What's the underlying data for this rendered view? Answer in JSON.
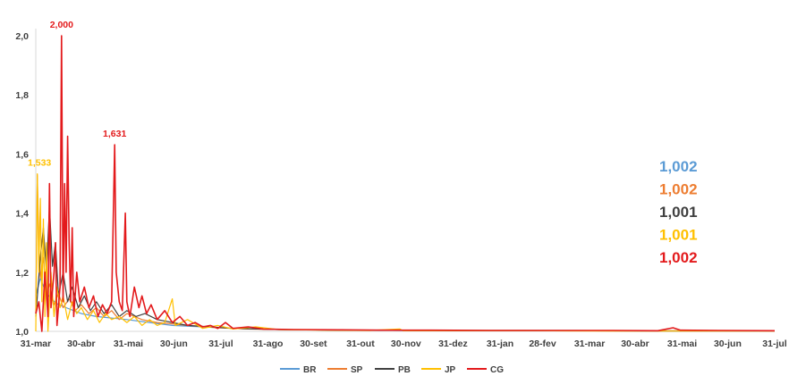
{
  "chart_data": {
    "type": "line",
    "ylim": [
      1.0,
      2.0
    ],
    "y_ticks": [
      "1,0",
      "1,2",
      "1,4",
      "1,6",
      "1,8",
      "2,0"
    ],
    "y_tick_values": [
      1.0,
      1.2,
      1.4,
      1.6,
      1.8,
      2.0
    ],
    "x_ticks": [
      "31-mar",
      "30-abr",
      "31-mai",
      "30-jun",
      "31-jul",
      "31-ago",
      "30-set",
      "31-out",
      "30-nov",
      "31-dez",
      "31-jan",
      "28-fev",
      "31-mar",
      "30-abr",
      "31-mai",
      "30-jun",
      "31-jul"
    ],
    "x_tick_days": [
      0,
      30,
      61,
      91,
      122,
      153,
      183,
      214,
      244,
      275,
      306,
      334,
      365,
      395,
      426,
      456,
      487
    ],
    "xlim": [
      0,
      487
    ],
    "grid": false,
    "legend_position": "bottom",
    "series": [
      {
        "name": "BR",
        "color": "#5B9BD5",
        "final_label": "1,002",
        "final_value": 1.002,
        "points": [
          [
            0,
            1.12
          ],
          [
            3,
            1.18
          ],
          [
            6,
            1.14
          ],
          [
            10,
            1.11
          ],
          [
            15,
            1.09
          ],
          [
            20,
            1.08
          ],
          [
            25,
            1.07
          ],
          [
            30,
            1.06
          ],
          [
            40,
            1.05
          ],
          [
            50,
            1.045
          ],
          [
            60,
            1.04
          ],
          [
            75,
            1.03
          ],
          [
            90,
            1.02
          ],
          [
            110,
            1.015
          ],
          [
            130,
            1.01
          ],
          [
            160,
            1.006
          ],
          [
            200,
            1.004
          ],
          [
            250,
            1.003
          ],
          [
            300,
            1.003
          ],
          [
            350,
            1.003
          ],
          [
            400,
            1.002
          ],
          [
            450,
            1.002
          ],
          [
            487,
            1.002
          ]
        ]
      },
      {
        "name": "SP",
        "color": "#ED7D31",
        "final_label": "1,002",
        "final_value": 1.002,
        "points": [
          [
            0,
            1.06
          ],
          [
            1,
            1.53
          ],
          [
            2,
            1.3
          ],
          [
            3,
            1.18
          ],
          [
            5,
            1.25
          ],
          [
            7,
            1.12
          ],
          [
            9,
            1.16
          ],
          [
            12,
            1.09
          ],
          [
            15,
            1.13
          ],
          [
            18,
            1.08
          ],
          [
            22,
            1.11
          ],
          [
            26,
            1.07
          ],
          [
            30,
            1.09
          ],
          [
            35,
            1.06
          ],
          [
            40,
            1.08
          ],
          [
            45,
            1.05
          ],
          [
            50,
            1.07
          ],
          [
            55,
            1.04
          ],
          [
            60,
            1.06
          ],
          [
            70,
            1.04
          ],
          [
            80,
            1.03
          ],
          [
            90,
            1.025
          ],
          [
            100,
            1.02
          ],
          [
            120,
            1.012
          ],
          [
            140,
            1.008
          ],
          [
            170,
            1.005
          ],
          [
            210,
            1.004
          ],
          [
            260,
            1.003
          ],
          [
            320,
            1.003
          ],
          [
            380,
            1.002
          ],
          [
            430,
            1.002
          ],
          [
            487,
            1.002
          ]
        ]
      },
      {
        "name": "PB",
        "color": "#404040",
        "final_label": "1,001",
        "final_value": 1.001,
        "points": [
          [
            0,
            1.05
          ],
          [
            3,
            1.25
          ],
          [
            5,
            1.35
          ],
          [
            7,
            1.2
          ],
          [
            9,
            1.42
          ],
          [
            11,
            1.22
          ],
          [
            13,
            1.3
          ],
          [
            15,
            1.12
          ],
          [
            18,
            1.2
          ],
          [
            21,
            1.1
          ],
          [
            24,
            1.15
          ],
          [
            28,
            1.08
          ],
          [
            32,
            1.12
          ],
          [
            36,
            1.07
          ],
          [
            40,
            1.1
          ],
          [
            45,
            1.06
          ],
          [
            50,
            1.09
          ],
          [
            55,
            1.05
          ],
          [
            60,
            1.07
          ],
          [
            66,
            1.05
          ],
          [
            72,
            1.06
          ],
          [
            80,
            1.04
          ],
          [
            90,
            1.03
          ],
          [
            100,
            1.02
          ],
          [
            115,
            1.015
          ],
          [
            130,
            1.01
          ],
          [
            160,
            1.006
          ],
          [
            200,
            1.004
          ],
          [
            250,
            1.003
          ],
          [
            300,
            1.002
          ],
          [
            350,
            1.002
          ],
          [
            400,
            1.001
          ],
          [
            450,
            1.001
          ],
          [
            487,
            1.001
          ]
        ]
      },
      {
        "name": "JP",
        "color": "#FFC000",
        "final_label": "1,001",
        "final_value": 1.001,
        "points": [
          [
            0,
            1.0
          ],
          [
            1,
            1.533
          ],
          [
            2,
            1.2
          ],
          [
            3,
            1.45
          ],
          [
            4,
            1.1
          ],
          [
            5,
            1.38
          ],
          [
            6,
            1.05
          ],
          [
            7,
            1.3
          ],
          [
            8,
            1.0
          ],
          [
            10,
            1.2
          ],
          [
            12,
            1.05
          ],
          [
            14,
            1.15
          ],
          [
            16,
            1.08
          ],
          [
            18,
            1.12
          ],
          [
            21,
            1.04
          ],
          [
            24,
            1.1
          ],
          [
            27,
            1.06
          ],
          [
            30,
            1.08
          ],
          [
            34,
            1.04
          ],
          [
            38,
            1.07
          ],
          [
            42,
            1.03
          ],
          [
            46,
            1.06
          ],
          [
            50,
            1.04
          ],
          [
            55,
            1.05
          ],
          [
            60,
            1.03
          ],
          [
            65,
            1.05
          ],
          [
            70,
            1.02
          ],
          [
            75,
            1.04
          ],
          [
            80,
            1.02
          ],
          [
            85,
            1.03
          ],
          [
            90,
            1.11
          ],
          [
            92,
            1.02
          ],
          [
            100,
            1.04
          ],
          [
            110,
            1.01
          ],
          [
            120,
            1.02
          ],
          [
            130,
            1.008
          ],
          [
            145,
            1.015
          ],
          [
            160,
            1.006
          ],
          [
            190,
            1.004
          ],
          [
            220,
            1.003
          ],
          [
            240,
            1.008
          ],
          [
            242,
            1.002
          ],
          [
            280,
            1.002
          ],
          [
            330,
            1.002
          ],
          [
            380,
            1.001
          ],
          [
            430,
            1.001
          ],
          [
            487,
            1.001
          ]
        ]
      },
      {
        "name": "CG",
        "color": "#E31A1C",
        "final_label": "1,002",
        "final_value": 1.002,
        "points": [
          [
            0,
            1.06
          ],
          [
            2,
            1.1
          ],
          [
            4,
            1.0
          ],
          [
            6,
            1.2
          ],
          [
            8,
            1.05
          ],
          [
            9,
            1.5
          ],
          [
            10,
            1.08
          ],
          [
            12,
            1.2
          ],
          [
            13,
            1.3
          ],
          [
            14,
            1.02
          ],
          [
            16,
            1.15
          ],
          [
            17,
            2.0
          ],
          [
            18,
            1.1
          ],
          [
            19,
            1.5
          ],
          [
            20,
            1.2
          ],
          [
            21,
            1.66
          ],
          [
            22,
            1.3
          ],
          [
            23,
            1.1
          ],
          [
            24,
            1.35
          ],
          [
            25,
            1.05
          ],
          [
            27,
            1.2
          ],
          [
            29,
            1.1
          ],
          [
            32,
            1.15
          ],
          [
            35,
            1.08
          ],
          [
            38,
            1.12
          ],
          [
            41,
            1.05
          ],
          [
            44,
            1.09
          ],
          [
            47,
            1.06
          ],
          [
            50,
            1.1
          ],
          [
            52,
            1.631
          ],
          [
            53,
            1.2
          ],
          [
            55,
            1.1
          ],
          [
            57,
            1.07
          ],
          [
            59,
            1.4
          ],
          [
            60,
            1.1
          ],
          [
            62,
            1.05
          ],
          [
            65,
            1.15
          ],
          [
            68,
            1.08
          ],
          [
            70,
            1.12
          ],
          [
            73,
            1.06
          ],
          [
            76,
            1.09
          ],
          [
            80,
            1.04
          ],
          [
            85,
            1.07
          ],
          [
            90,
            1.03
          ],
          [
            95,
            1.05
          ],
          [
            100,
            1.02
          ],
          [
            105,
            1.03
          ],
          [
            110,
            1.015
          ],
          [
            115,
            1.02
          ],
          [
            120,
            1.01
          ],
          [
            125,
            1.03
          ],
          [
            130,
            1.01
          ],
          [
            140,
            1.015
          ],
          [
            150,
            1.008
          ],
          [
            170,
            1.006
          ],
          [
            200,
            1.005
          ],
          [
            230,
            1.004
          ],
          [
            260,
            1.004
          ],
          [
            300,
            1.003
          ],
          [
            340,
            1.003
          ],
          [
            380,
            1.003
          ],
          [
            410,
            1.002
          ],
          [
            420,
            1.012
          ],
          [
            425,
            1.004
          ],
          [
            450,
            1.003
          ],
          [
            487,
            1.002
          ]
        ]
      }
    ],
    "annotations": [
      {
        "label": "2,000",
        "x": 17,
        "y": 2.0,
        "color": "#E31A1C"
      },
      {
        "label": "1,631",
        "x": 52,
        "y": 1.631,
        "color": "#E31A1C"
      },
      {
        "label": "1,533",
        "x": 1,
        "y": 1.533,
        "color": "#FFC000"
      }
    ]
  }
}
